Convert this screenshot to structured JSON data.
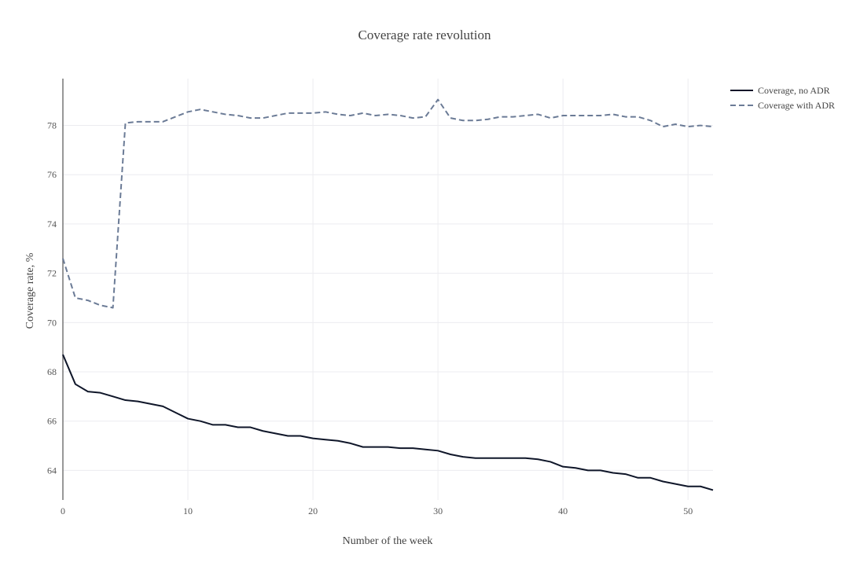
{
  "chart_data": {
    "type": "line",
    "title": "Coverage rate revolution",
    "xlabel": "Number of the week",
    "ylabel": "Coverage rate, %",
    "xlim": [
      0,
      52
    ],
    "ylim": [
      62.8,
      79.9
    ],
    "x_ticks": [
      0,
      10,
      20,
      30,
      40,
      50
    ],
    "y_ticks": [
      64,
      66,
      68,
      70,
      72,
      74,
      76,
      78
    ],
    "grid": true,
    "legend_position": "top-right",
    "x": [
      0,
      1,
      2,
      3,
      4,
      5,
      6,
      7,
      8,
      9,
      10,
      11,
      12,
      13,
      14,
      15,
      16,
      17,
      18,
      19,
      20,
      21,
      22,
      23,
      24,
      25,
      26,
      27,
      28,
      29,
      30,
      31,
      32,
      33,
      34,
      35,
      36,
      37,
      38,
      39,
      40,
      41,
      42,
      43,
      44,
      45,
      46,
      47,
      48,
      49,
      50,
      51,
      52
    ],
    "series": [
      {
        "name": "Coverage, no ADR",
        "color": "#0f1629",
        "dash": "solid",
        "values": [
          68.7,
          67.5,
          67.2,
          67.15,
          67.0,
          66.85,
          66.8,
          66.7,
          66.6,
          66.35,
          66.1,
          66.0,
          65.85,
          65.85,
          65.75,
          65.75,
          65.6,
          65.5,
          65.4,
          65.4,
          65.3,
          65.25,
          65.2,
          65.1,
          64.95,
          64.95,
          64.95,
          64.9,
          64.9,
          64.85,
          64.8,
          64.65,
          64.55,
          64.5,
          64.5,
          64.5,
          64.5,
          64.5,
          64.45,
          64.35,
          64.15,
          64.1,
          64.0,
          64.0,
          63.9,
          63.85,
          63.7,
          63.7,
          63.55,
          63.45,
          63.35,
          63.35,
          63.2
        ]
      },
      {
        "name": "Coverage with ADR",
        "color": "#6b7b96",
        "dash": "dashed",
        "values": [
          72.6,
          71.0,
          70.9,
          70.7,
          70.6,
          78.1,
          78.15,
          78.15,
          78.15,
          78.35,
          78.55,
          78.65,
          78.55,
          78.45,
          78.4,
          78.3,
          78.3,
          78.4,
          78.5,
          78.5,
          78.5,
          78.55,
          78.45,
          78.4,
          78.5,
          78.4,
          78.45,
          78.4,
          78.3,
          78.35,
          79.05,
          78.3,
          78.2,
          78.2,
          78.25,
          78.35,
          78.35,
          78.4,
          78.45,
          78.3,
          78.4,
          78.4,
          78.4,
          78.4,
          78.45,
          78.35,
          78.35,
          78.2,
          77.95,
          78.05,
          77.95,
          78.0,
          77.95
        ]
      }
    ]
  }
}
